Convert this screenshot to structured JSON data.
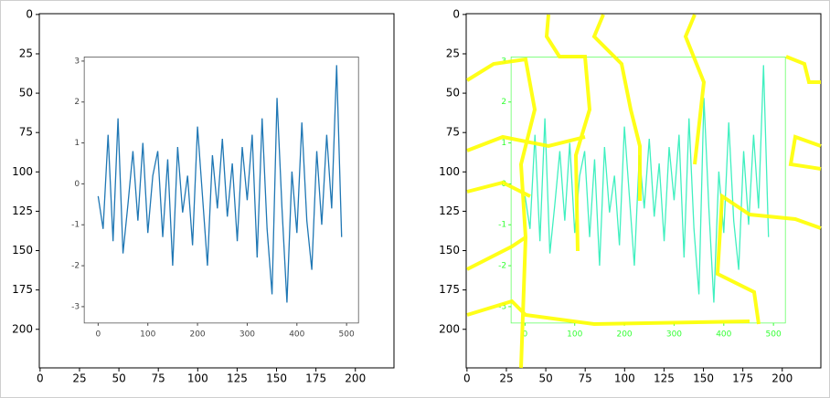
{
  "chart_data": [
    {
      "type": "image",
      "xlim": [
        -0.5,
        224.5
      ],
      "ylim": [
        224.5,
        -0.5
      ],
      "xticks": [
        0,
        25,
        50,
        75,
        100,
        125,
        150,
        175,
        200
      ],
      "yticks": [
        0,
        25,
        50,
        75,
        100,
        125,
        150,
        175,
        200
      ],
      "inset": {
        "type": "line",
        "color": "#1f77b4",
        "tick_color": "#444444",
        "xlim": [
          -28,
          524
        ],
        "ylim": [
          -3.4,
          3.1
        ],
        "xticks": [
          0,
          100,
          200,
          300,
          400,
          500
        ],
        "yticks": [
          -3,
          -2,
          -1,
          0,
          1,
          2,
          3
        ],
        "x": [
          0,
          10,
          20,
          30,
          40,
          50,
          60,
          70,
          80,
          90,
          100,
          110,
          120,
          130,
          140,
          150,
          160,
          170,
          180,
          190,
          200,
          210,
          220,
          230,
          240,
          250,
          260,
          270,
          280,
          290,
          300,
          310,
          320,
          330,
          340,
          350,
          360,
          370,
          380,
          390,
          400,
          410,
          420,
          430,
          440,
          450,
          460,
          470,
          480,
          490
        ],
        "values": [
          -0.3,
          -1.1,
          1.2,
          -1.4,
          1.6,
          -1.7,
          -0.5,
          0.8,
          -0.9,
          1.0,
          -1.2,
          0.2,
          0.8,
          -1.3,
          0.6,
          -2.0,
          0.9,
          -0.7,
          0.2,
          -1.5,
          1.4,
          -0.3,
          -2.0,
          0.7,
          -0.6,
          1.1,
          -0.8,
          0.5,
          -1.4,
          0.9,
          -0.4,
          1.2,
          -1.8,
          1.6,
          -1.1,
          -2.7,
          2.1,
          -0.6,
          -2.9,
          0.3,
          -1.2,
          1.5,
          -0.9,
          -2.1,
          0.8,
          -1.0,
          1.2,
          -0.6,
          2.9,
          -1.3
        ]
      }
    },
    {
      "type": "image",
      "xlim": [
        -0.5,
        224.5
      ],
      "ylim": [
        224.5,
        -0.5
      ],
      "xticks": [
        0,
        25,
        50,
        75,
        100,
        125,
        150,
        175,
        200
      ],
      "yticks": [
        0,
        25,
        50,
        75,
        100,
        125,
        150,
        175,
        200
      ],
      "inset": {
        "type": "line",
        "color": "#40f0c0",
        "tick_color": "#33ff33",
        "xlim": [
          -28,
          524
        ],
        "ylim": [
          -3.4,
          3.1
        ],
        "xticks": [
          0,
          100,
          200,
          300,
          400,
          500
        ],
        "yticks": [
          -3,
          -2,
          -1,
          0,
          1,
          2,
          3
        ],
        "x": [
          0,
          10,
          20,
          30,
          40,
          50,
          60,
          70,
          80,
          90,
          100,
          110,
          120,
          130,
          140,
          150,
          160,
          170,
          180,
          190,
          200,
          210,
          220,
          230,
          240,
          250,
          260,
          270,
          280,
          290,
          300,
          310,
          320,
          330,
          340,
          350,
          360,
          370,
          380,
          390,
          400,
          410,
          420,
          430,
          440,
          450,
          460,
          470,
          480,
          490
        ],
        "values": [
          -0.3,
          -1.1,
          1.2,
          -1.4,
          1.6,
          -1.7,
          -0.5,
          0.8,
          -0.9,
          1.0,
          -1.2,
          0.2,
          0.8,
          -1.3,
          0.6,
          -2.0,
          0.9,
          -0.7,
          0.2,
          -1.5,
          1.4,
          -0.3,
          -2.0,
          0.7,
          -0.6,
          1.1,
          -0.8,
          0.5,
          -1.4,
          0.9,
          -0.4,
          1.2,
          -1.8,
          1.6,
          -1.1,
          -2.7,
          2.1,
          -0.6,
          -2.9,
          0.3,
          -1.2,
          1.5,
          -0.9,
          -2.1,
          0.8,
          -1.0,
          1.2,
          -0.6,
          2.9,
          -1.3
        ]
      }
    }
  ]
}
